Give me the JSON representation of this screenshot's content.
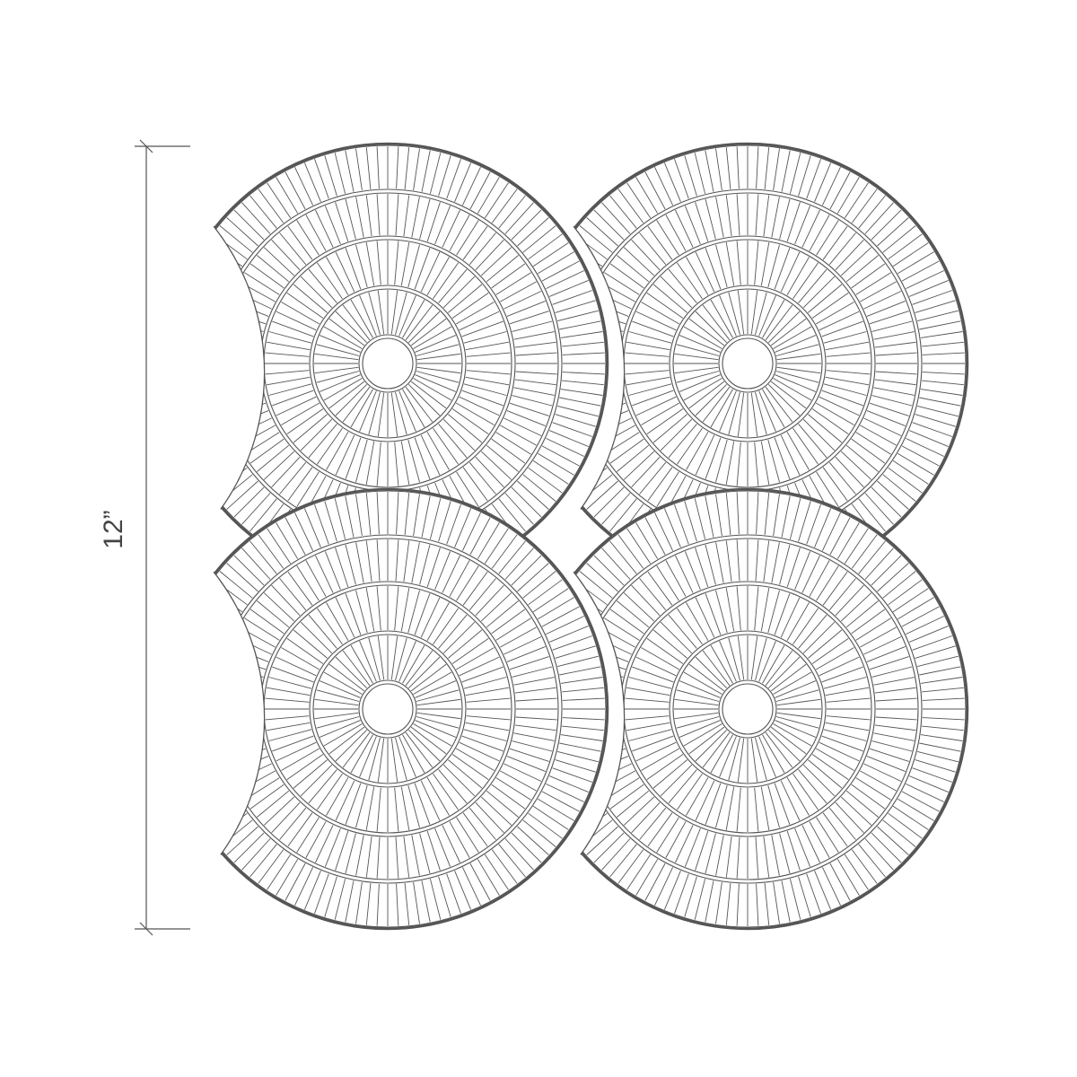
{
  "dimension": {
    "label": "12”"
  }
}
